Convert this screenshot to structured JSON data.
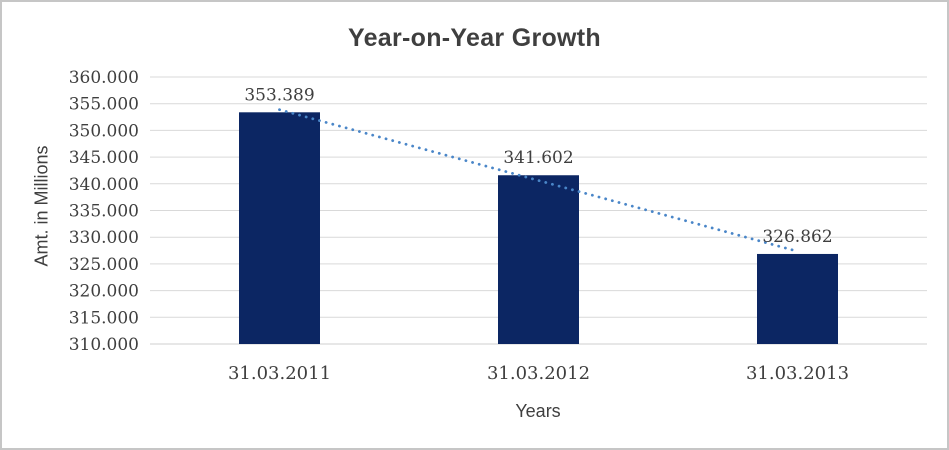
{
  "chart_data": {
    "type": "bar",
    "title": "Year-on-Year Growth",
    "xlabel": "Years",
    "ylabel": "Amt. in Millions",
    "categories": [
      "31.03.2011",
      "31.03.2012",
      "31.03.2013"
    ],
    "values": [
      353.389,
      341.602,
      326.862
    ],
    "data_labels": [
      "353.389",
      "341.602",
      "326.862"
    ],
    "ylim": [
      310,
      360
    ],
    "ytick_step": 5,
    "ytick_labels": [
      "310.000",
      "315.000",
      "320.000",
      "325.000",
      "330.000",
      "335.000",
      "340.000",
      "345.000",
      "350.000",
      "355.000",
      "360.000"
    ],
    "grid": true,
    "legend": false,
    "bar_color": "#0c2663",
    "gridline_color": "#d9d9d9",
    "axisline_color": "#cfcfcf",
    "text_color": "#3f3f3f",
    "trendline": {
      "type": "linear",
      "style": "dotted",
      "color": "#4a86c8"
    }
  }
}
